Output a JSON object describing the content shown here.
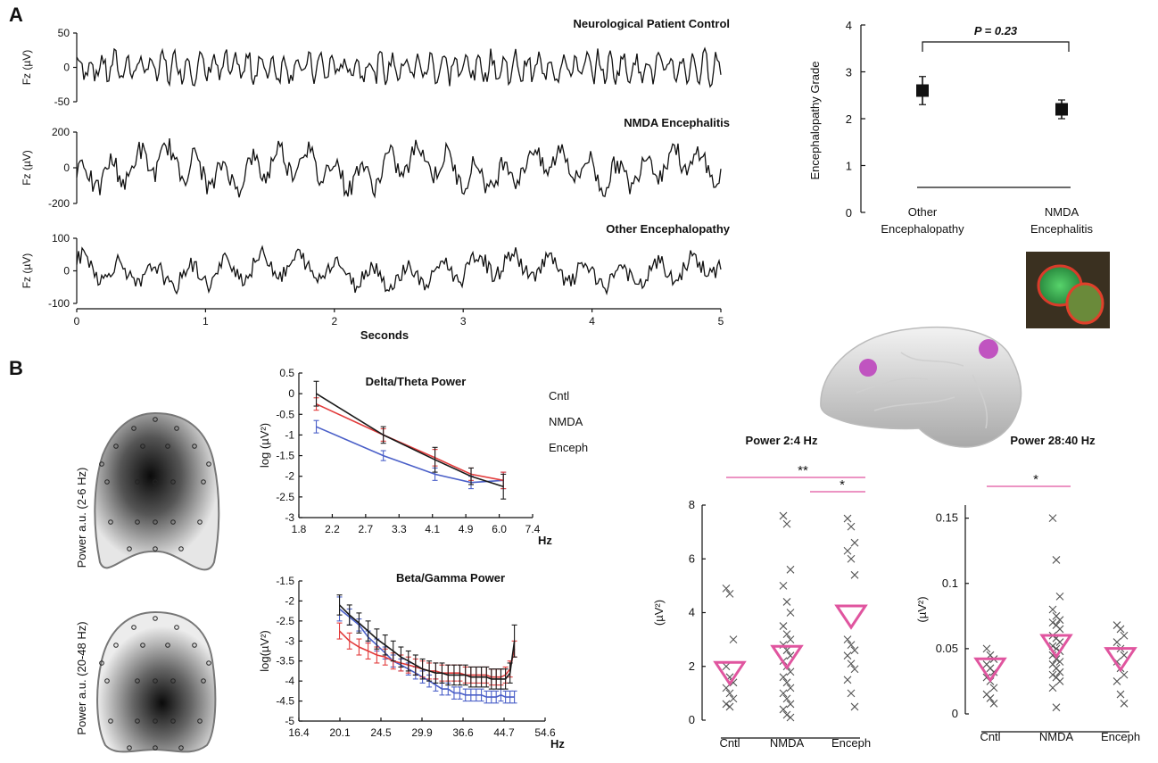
{
  "panels": {
    "a": "A",
    "b": "B"
  },
  "chart_data": [
    {
      "type": "line",
      "name": "eeg-traces",
      "xlabel": "Seconds",
      "xlim": [
        0,
        5
      ],
      "xticks": [
        "0",
        "1",
        "2",
        "3",
        "4",
        "5"
      ],
      "traces": [
        {
          "title": "Neurological Patient Control",
          "ylabel": "Fz (µV)",
          "yticks": [
            "50",
            "0",
            "-50"
          ],
          "ylim": [
            -50,
            50
          ]
        },
        {
          "title": "NMDA Encephalitis",
          "ylabel": "Fz (µV)",
          "yticks": [
            "200",
            "0",
            "-200"
          ],
          "ylim": [
            -200,
            200
          ]
        },
        {
          "title": "Other Encephalopathy",
          "ylabel": "Fz (µV)",
          "yticks": [
            "100",
            "0",
            "-100"
          ],
          "ylim": [
            -100,
            100
          ]
        }
      ]
    },
    {
      "type": "scatter",
      "name": "encephalopathy-grade",
      "ylabel": "Encephalopathy Grade",
      "ylim": [
        0,
        4
      ],
      "yticks": [
        "0",
        "1",
        "2",
        "3",
        "4"
      ],
      "categories": [
        "Other Encephalopathy",
        "NMDA Encephalitis"
      ],
      "category_lines": [
        [
          "Other",
          "Encephalopathy"
        ],
        [
          "NMDA",
          "Encephalitis"
        ]
      ],
      "values": [
        2.6,
        2.2
      ],
      "err": [
        0.3,
        0.2
      ],
      "annotation": "P = 0.23"
    },
    {
      "type": "line",
      "name": "delta-theta-power",
      "title": "Delta/Theta Power",
      "ylabel": "log (µV²)",
      "xlabel": "Hz",
      "xticks": [
        "1.8",
        "2.2",
        "2.7",
        "3.3",
        "4.1",
        "4.9",
        "6.0",
        "7.4"
      ],
      "yticks": [
        "0.5",
        "0",
        "-0.5",
        "-1",
        "-1.5",
        "-2",
        "-2.5",
        "-3"
      ],
      "ylim": [
        -3,
        0.5
      ],
      "legend": [
        "Cntl",
        "NMDA",
        "Enceph"
      ],
      "colors": {
        "Cntl": "#4a5fc8",
        "NMDA": "#e23b3b",
        "Enceph": "#1a1a1a"
      },
      "x": [
        2.0,
        3.0,
        4.1,
        5.1,
        6.2
      ],
      "series": [
        {
          "name": "Cntl",
          "values": [
            -0.8,
            -1.5,
            -1.95,
            -2.15,
            -2.1
          ],
          "err": [
            0.15,
            0.12,
            0.15,
            0.15,
            0.2
          ]
        },
        {
          "name": "NMDA",
          "values": [
            -0.25,
            -1.0,
            -1.55,
            -1.95,
            -2.1
          ],
          "err": [
            0.15,
            0.15,
            0.2,
            0.15,
            0.2
          ]
        },
        {
          "name": "Enceph",
          "values": [
            0.0,
            -1.0,
            -1.6,
            -2.0,
            -2.25
          ],
          "err": [
            0.3,
            0.2,
            0.3,
            0.2,
            0.3
          ]
        }
      ],
      "topomap_label": "Power a.u. (2-6 Hz)"
    },
    {
      "type": "line",
      "name": "beta-gamma-power",
      "title": "Beta/Gamma Power",
      "ylabel": "log(µV²)",
      "xlabel": "Hz",
      "xticks": [
        "16.4",
        "20.1",
        "24.5",
        "29.9",
        "36.6",
        "44.7",
        "54.6"
      ],
      "yticks": [
        "-1.5",
        "-2",
        "-2.5",
        "-3",
        "-3.5",
        "-4",
        "-4.5",
        "-5"
      ],
      "ylim": [
        -5,
        -1.5
      ],
      "colors": {
        "Cntl": "#4a5fc8",
        "NMDA": "#e23b3b",
        "Enceph": "#1a1a1a"
      },
      "x": [
        20,
        21,
        22,
        23,
        24,
        25,
        26,
        27,
        28,
        29,
        30,
        31,
        32,
        33,
        34,
        35,
        36,
        37,
        38,
        39,
        40,
        41,
        42,
        43,
        44,
        45,
        46,
        47
      ],
      "series": [
        {
          "name": "Cntl",
          "values": [
            -2.2,
            -2.4,
            -2.6,
            -2.9,
            -3.1,
            -3.3,
            -3.5,
            -3.6,
            -3.7,
            -3.8,
            -3.9,
            -4.0,
            -4.1,
            -4.2,
            -4.2,
            -4.3,
            -4.3,
            -4.35,
            -4.35,
            -4.35,
            -4.35,
            -4.4,
            -4.4,
            -4.4,
            -4.35,
            -4.4,
            -4.4,
            -4.4
          ],
          "err": [
            0.3,
            0.2,
            0.15,
            0.15,
            0.15,
            0.15,
            0.15,
            0.15,
            0.15,
            0.15,
            0.15,
            0.15,
            0.15,
            0.15,
            0.15,
            0.15,
            0.15,
            0.15,
            0.15,
            0.15,
            0.15,
            0.15,
            0.15,
            0.15,
            0.15,
            0.15,
            0.15,
            0.15
          ]
        },
        {
          "name": "NMDA",
          "values": [
            -2.75,
            -3.0,
            -3.15,
            -3.25,
            -3.35,
            -3.4,
            -3.5,
            -3.55,
            -3.6,
            -3.65,
            -3.7,
            -3.75,
            -3.75,
            -3.8,
            -3.8,
            -3.8,
            -3.8,
            -3.85,
            -3.85,
            -3.85,
            -3.85,
            -3.85,
            -3.9,
            -3.9,
            -3.9,
            -3.85,
            -3.7,
            -3.2
          ],
          "err": [
            0.2,
            0.2,
            0.2,
            0.2,
            0.2,
            0.2,
            0.2,
            0.2,
            0.2,
            0.2,
            0.2,
            0.2,
            0.2,
            0.2,
            0.2,
            0.2,
            0.2,
            0.2,
            0.2,
            0.2,
            0.2,
            0.2,
            0.2,
            0.2,
            0.2,
            0.2,
            0.2,
            0.2
          ]
        },
        {
          "name": "Enceph",
          "values": [
            -2.1,
            -2.35,
            -2.55,
            -2.75,
            -2.95,
            -3.1,
            -3.25,
            -3.4,
            -3.5,
            -3.6,
            -3.7,
            -3.75,
            -3.8,
            -3.8,
            -3.85,
            -3.85,
            -3.85,
            -3.85,
            -3.9,
            -3.9,
            -3.9,
            -3.9,
            -3.95,
            -3.95,
            -3.95,
            -3.95,
            -3.8,
            -3.0
          ],
          "err": [
            0.25,
            0.25,
            0.25,
            0.25,
            0.25,
            0.25,
            0.25,
            0.25,
            0.25,
            0.25,
            0.25,
            0.25,
            0.25,
            0.25,
            0.25,
            0.25,
            0.25,
            0.25,
            0.25,
            0.25,
            0.25,
            0.25,
            0.25,
            0.25,
            0.25,
            0.25,
            0.25,
            0.4
          ]
        }
      ],
      "topomap_label": "Power a.u. (20-48 Hz)"
    },
    {
      "type": "scatter",
      "name": "power-2-4-hz",
      "title": "Power 2:4 Hz",
      "ylabel": "(µV²)",
      "ylim": [
        0,
        8
      ],
      "yticks": [
        "0",
        "2",
        "4",
        "6",
        "8"
      ],
      "categories": [
        "Cntl",
        "NMDA",
        "Enceph"
      ],
      "means": [
        1.75,
        2.35,
        3.85
      ],
      "points": [
        [
          4.9,
          4.7,
          3.0,
          2.0,
          1.6,
          1.4,
          1.2,
          1.0,
          0.8,
          0.6,
          0.5
        ],
        [
          7.6,
          7.3,
          5.6,
          5.0,
          4.4,
          4.0,
          3.5,
          3.2,
          3.0,
          2.8,
          2.6,
          2.4,
          2.2,
          2.0,
          1.8,
          1.6,
          1.4,
          1.2,
          1.0,
          0.8,
          0.6,
          0.4,
          0.2,
          0.1
        ],
        [
          7.5,
          7.2,
          6.6,
          6.3,
          6.0,
          5.4,
          3.0,
          2.8,
          2.6,
          2.4,
          2.1,
          1.9,
          1.5,
          1.0,
          0.5
        ]
      ],
      "significance": [
        {
          "label": "**",
          "from": "Cntl",
          "to": "Enceph"
        },
        {
          "label": "*",
          "from": "NMDA",
          "to": "Enceph"
        }
      ]
    },
    {
      "type": "scatter",
      "name": "power-28-40-hz",
      "title": "Power 28:40 Hz",
      "ylabel": "(µV²)",
      "ylim": [
        0,
        0.16
      ],
      "yticks": [
        "0",
        "0.05",
        "0.1",
        "0.15"
      ],
      "categories": [
        "Cntl",
        "NMDA",
        "Enceph"
      ],
      "means": [
        0.034,
        0.052,
        0.042
      ],
      "points": [
        [
          0.05,
          0.045,
          0.042,
          0.038,
          0.035,
          0.032,
          0.028,
          0.025,
          0.02,
          0.015,
          0.012,
          0.008
        ],
        [
          0.15,
          0.118,
          0.09,
          0.08,
          0.075,
          0.072,
          0.07,
          0.068,
          0.065,
          0.06,
          0.058,
          0.055,
          0.052,
          0.05,
          0.048,
          0.045,
          0.042,
          0.04,
          0.038,
          0.035,
          0.032,
          0.03,
          0.028,
          0.025,
          0.02,
          0.005
        ],
        [
          0.068,
          0.065,
          0.06,
          0.055,
          0.05,
          0.045,
          0.04,
          0.035,
          0.03,
          0.025,
          0.015,
          0.008
        ]
      ],
      "significance": [
        {
          "label": "*",
          "from": "Cntl",
          "to": "NMDA"
        }
      ]
    }
  ]
}
